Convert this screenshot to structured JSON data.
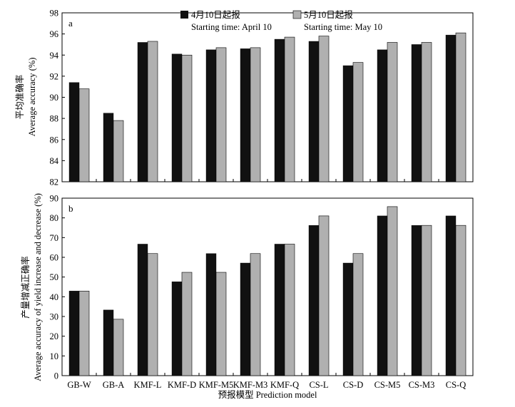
{
  "colors": {
    "series_april": "#111111",
    "series_may": "#b0b0b0"
  },
  "chart_data": [
    {
      "type": "bar",
      "panel": "a",
      "ylabel_cn": "平均准确率",
      "ylabel_en": "Average accuracy (%)",
      "ylim": [
        82,
        98
      ],
      "yticks": [
        "82",
        "84",
        "86",
        "88",
        "90",
        "92",
        "94",
        "96",
        "98"
      ],
      "categories": [
        "GB-W",
        "GB-A",
        "KMF-L",
        "KMF-D",
        "KMF-M5",
        "KMF-M3",
        "KMF-Q",
        "CS-L",
        "CS-D",
        "CS-M5",
        "CS-M3",
        "CS-Q"
      ],
      "series": [
        {
          "name": "4月10日起报",
          "name_en": "Starting time: April 10",
          "values": [
            91.4,
            88.5,
            95.2,
            94.1,
            94.5,
            94.6,
            95.5,
            95.3,
            93.0,
            94.5,
            95.0,
            95.9
          ]
        },
        {
          "name": "5月10日起报",
          "name_en": "Starting time: May 10",
          "values": [
            90.8,
            87.8,
            95.3,
            94.0,
            94.7,
            94.7,
            95.7,
            95.8,
            93.3,
            95.2,
            95.2,
            96.1
          ]
        }
      ]
    },
    {
      "type": "bar",
      "panel": "b",
      "ylabel_cn": "产量增减正确率",
      "ylabel_en": "Average accuracy of yield increase and decrease (%)",
      "ylim": [
        0,
        90
      ],
      "yticks": [
        "0",
        "10",
        "20",
        "30",
        "40",
        "50",
        "60",
        "70",
        "80",
        "90"
      ],
      "xlabel": "预报模型 Prediction model",
      "categories": [
        "GB-W",
        "GB-A",
        "KMF-L",
        "KMF-D",
        "KMF-M5",
        "KMF-M3",
        "KMF-Q",
        "CS-L",
        "CS-D",
        "CS-M5",
        "CS-M3",
        "CS-Q"
      ],
      "series": [
        {
          "name": "4月10日起报",
          "name_en": "Starting time: April 10",
          "values": [
            42.9,
            33.3,
            66.7,
            47.6,
            61.9,
            57.1,
            66.7,
            76.2,
            57.1,
            81.0,
            76.2,
            81.0
          ]
        },
        {
          "name": "5月10日起报",
          "name_en": "Starting time: May 10",
          "values": [
            42.9,
            28.6,
            61.9,
            52.4,
            52.4,
            61.9,
            66.7,
            81.0,
            61.9,
            85.7,
            76.2,
            76.2
          ]
        }
      ]
    }
  ]
}
